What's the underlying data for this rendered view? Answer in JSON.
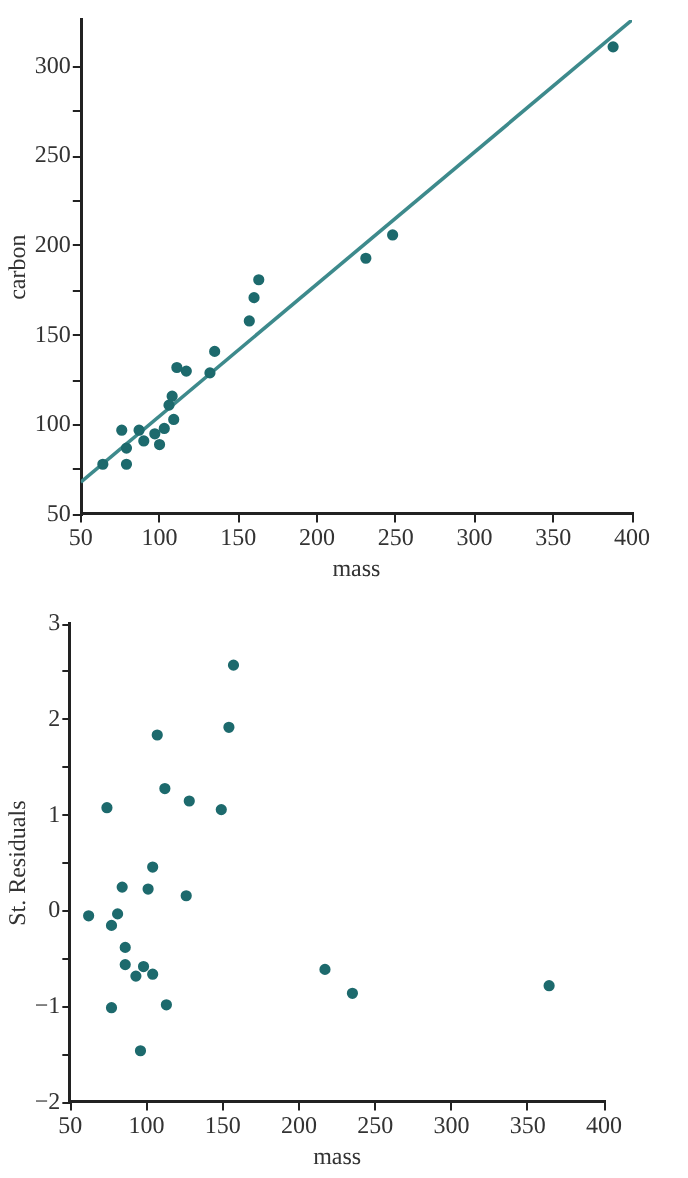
{
  "chart_data": [
    {
      "type": "scatter",
      "xlabel": "mass",
      "ylabel": "carbon",
      "xlim": [
        50,
        400
      ],
      "ylim": [
        50,
        326
      ],
      "xticks": [
        50,
        100,
        150,
        200,
        250,
        300,
        350,
        400
      ],
      "yticks": [
        50,
        {
          "value": 75,
          "label": null
        },
        100,
        {
          "value": 125,
          "label": null
        },
        150,
        {
          "value": 175,
          "label": null
        },
        200,
        {
          "value": 225,
          "label": null
        },
        250,
        {
          "value": 275,
          "label": null
        },
        300
      ],
      "grid": false,
      "legend": false,
      "marker": "circle",
      "series": [
        {
          "type": "scatter",
          "color": "#1d6a6d",
          "x": [
            64,
            76,
            79,
            79,
            87,
            90,
            97,
            100,
            103,
            106,
            108,
            109,
            111,
            117,
            132,
            135,
            157,
            160,
            163,
            231,
            248,
            388
          ],
          "values": [
            78,
            97,
            87,
            78,
            97,
            91,
            95,
            89,
            98,
            111,
            116,
            103,
            132,
            130,
            129,
            141,
            158,
            171,
            181,
            193,
            206,
            311
          ]
        },
        {
          "type": "line",
          "color": "#3d8a8c",
          "marker": "none",
          "x": [
            50,
            400
          ],
          "values": [
            68,
            326
          ]
        }
      ]
    },
    {
      "type": "scatter",
      "xlabel": "mass",
      "ylabel": "St. Residuals",
      "xlim": [
        50,
        400
      ],
      "ylim": [
        -2,
        3
      ],
      "xticks": [
        50,
        100,
        150,
        200,
        250,
        300,
        350,
        400
      ],
      "yticks": [
        {
          "value": -2,
          "label": "−2"
        },
        {
          "value": -1.5,
          "label": null
        },
        {
          "value": -1,
          "label": "−1"
        },
        {
          "value": -0.5,
          "label": null
        },
        0,
        {
          "value": 0.5,
          "label": null
        },
        1,
        {
          "value": 1.5,
          "label": null
        },
        2,
        {
          "value": 2.5,
          "label": null
        },
        3
      ],
      "grid": false,
      "legend": false,
      "marker": "circle",
      "series": [
        {
          "type": "scatter",
          "color": "#1d6a6d",
          "x": [
            157,
            154,
            107,
            112,
            128,
            149,
            74,
            104,
            84,
            101,
            126,
            62,
            81,
            77,
            86,
            86,
            98,
            93,
            104,
            77,
            113,
            96,
            217,
            235,
            364
          ],
          "values": [
            2.57,
            1.92,
            1.84,
            1.28,
            1.15,
            1.06,
            1.08,
            0.46,
            0.25,
            0.23,
            0.16,
            -0.05,
            -0.03,
            -0.15,
            -0.38,
            -0.56,
            -0.58,
            -0.68,
            -0.66,
            -1.01,
            -0.98,
            -1.46,
            -0.61,
            -0.86,
            -0.78
          ]
        }
      ]
    }
  ]
}
